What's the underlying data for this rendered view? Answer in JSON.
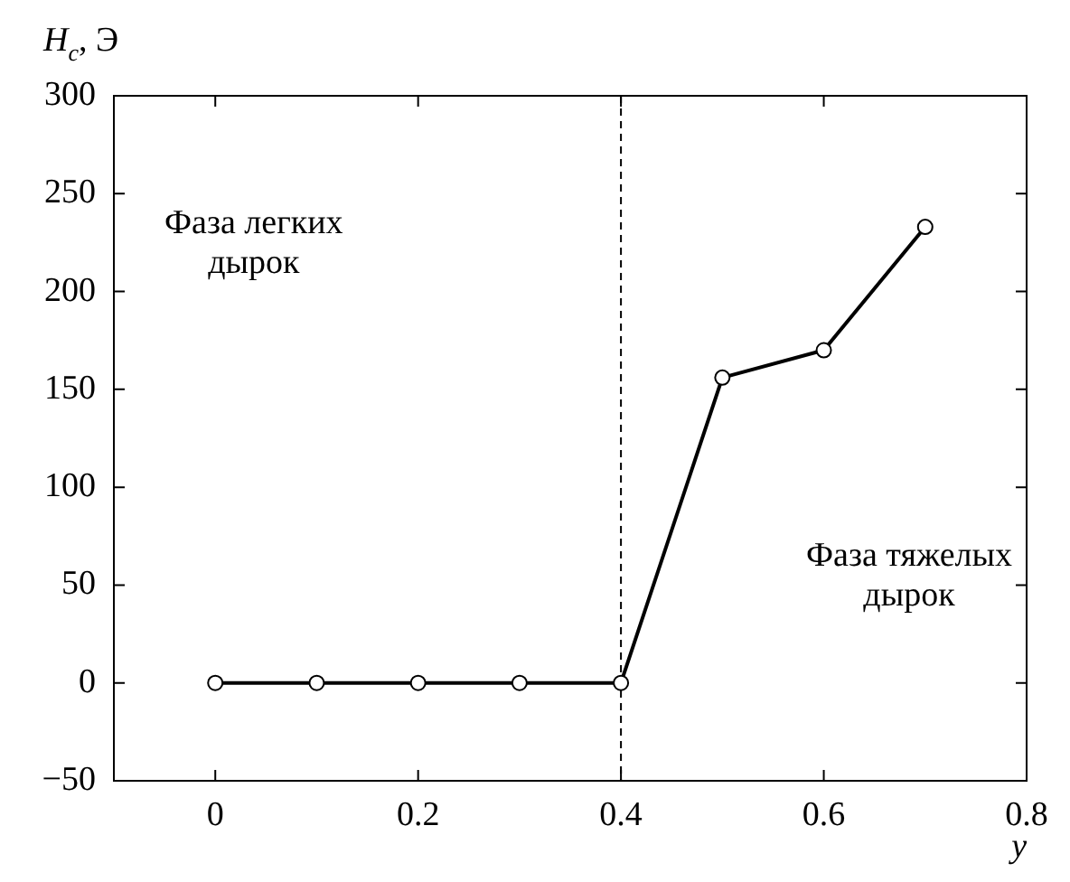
{
  "chart_data": {
    "type": "line",
    "xlabel": "y",
    "ylabel": "H$_{c}$, Э",
    "x": [
      0,
      0.1,
      0.2,
      0.3,
      0.4,
      0.5,
      0.6,
      0.7
    ],
    "series": [
      {
        "color": "#000000",
        "values": [
          0,
          0,
          0,
          0,
          0,
          156,
          170,
          233
        ]
      }
    ],
    "xlim": [
      -0.1,
      0.8
    ],
    "xticks": [
      0,
      0.2,
      0.4,
      0.6,
      0.8
    ],
    "ylim": [
      -50,
      300
    ],
    "yticks": [
      -50,
      0,
      50,
      100,
      150,
      200,
      250,
      300
    ],
    "ref_lines": [
      {
        "axis": "x",
        "value": 0.4,
        "line_style": "dashed",
        "color": "#000000"
      }
    ],
    "annotations": [
      "Фаза легких\nдырок",
      "Фаза тяжелых\nдырок"
    ],
    "marker": "circle",
    "line_style": "solid",
    "grid": false,
    "legend": false
  }
}
